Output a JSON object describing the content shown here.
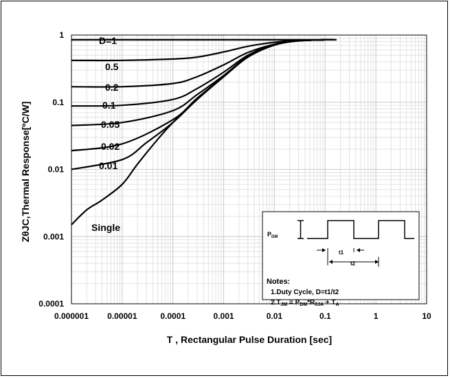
{
  "chart_data": {
    "type": "line",
    "title": "",
    "xlabel": "T , Rectangular Pulse Duration [sec]",
    "ylabel": "ZθJC,Thermal Response[ºC/W]",
    "x_scale": "log",
    "y_scale": "log",
    "xlim": [
      1e-06,
      10
    ],
    "ylim": [
      0.0001,
      1
    ],
    "grid": true,
    "x_ticks": [
      "0.000001",
      "0.00001",
      "0.0001",
      "0.001",
      "0.01",
      "0.1",
      "1",
      "10"
    ],
    "y_ticks": [
      "1",
      "0.1",
      "0.01",
      "0.001",
      "0.0001"
    ],
    "series": [
      {
        "name": "D=1",
        "points": [
          [
            1e-06,
            0.85
          ],
          [
            0.001,
            0.85
          ],
          [
            0.1,
            0.85
          ],
          [
            0.15,
            0.85
          ]
        ]
      },
      {
        "name": "0.5",
        "points": [
          [
            1e-06,
            0.42
          ],
          [
            1e-05,
            0.42
          ],
          [
            0.0001,
            0.44
          ],
          [
            0.0003,
            0.47
          ],
          [
            0.001,
            0.56
          ],
          [
            0.003,
            0.68
          ],
          [
            0.01,
            0.78
          ],
          [
            0.03,
            0.83
          ],
          [
            0.1,
            0.85
          ],
          [
            0.15,
            0.85
          ]
        ]
      },
      {
        "name": "0.2",
        "points": [
          [
            1e-06,
            0.17
          ],
          [
            1e-05,
            0.17
          ],
          [
            0.0001,
            0.19
          ],
          [
            0.0003,
            0.24
          ],
          [
            0.001,
            0.36
          ],
          [
            0.003,
            0.55
          ],
          [
            0.01,
            0.73
          ],
          [
            0.03,
            0.82
          ],
          [
            0.1,
            0.85
          ],
          [
            0.15,
            0.85
          ]
        ]
      },
      {
        "name": "0.1",
        "points": [
          [
            1e-06,
            0.088
          ],
          [
            1e-05,
            0.09
          ],
          [
            0.0001,
            0.11
          ],
          [
            0.0003,
            0.16
          ],
          [
            0.001,
            0.28
          ],
          [
            0.003,
            0.5
          ],
          [
            0.01,
            0.72
          ],
          [
            0.03,
            0.82
          ],
          [
            0.1,
            0.85
          ],
          [
            0.15,
            0.85
          ]
        ]
      },
      {
        "name": "0.05",
        "points": [
          [
            1e-06,
            0.045
          ],
          [
            1e-05,
            0.05
          ],
          [
            0.0001,
            0.075
          ],
          [
            0.0003,
            0.13
          ],
          [
            0.001,
            0.25
          ],
          [
            0.003,
            0.48
          ],
          [
            0.01,
            0.71
          ],
          [
            0.03,
            0.82
          ],
          [
            0.1,
            0.85
          ],
          [
            0.15,
            0.85
          ]
        ]
      },
      {
        "name": "0.02",
        "points": [
          [
            1e-06,
            0.019
          ],
          [
            1e-05,
            0.024
          ],
          [
            0.0001,
            0.055
          ],
          [
            0.0003,
            0.115
          ],
          [
            0.001,
            0.24
          ],
          [
            0.003,
            0.47
          ],
          [
            0.01,
            0.71
          ],
          [
            0.03,
            0.82
          ],
          [
            0.1,
            0.85
          ],
          [
            0.15,
            0.85
          ]
        ]
      },
      {
        "name": "0.01",
        "points": [
          [
            1e-06,
            0.01
          ],
          [
            1e-05,
            0.014
          ],
          [
            3e-05,
            0.025
          ],
          [
            0.0001,
            0.05
          ],
          [
            0.0003,
            0.11
          ],
          [
            0.001,
            0.24
          ],
          [
            0.003,
            0.47
          ],
          [
            0.01,
            0.71
          ],
          [
            0.03,
            0.82
          ],
          [
            0.1,
            0.85
          ],
          [
            0.15,
            0.85
          ]
        ]
      },
      {
        "name": "Single",
        "points": [
          [
            1e-06,
            0.0015
          ],
          [
            2e-06,
            0.0025
          ],
          [
            4e-06,
            0.0035
          ],
          [
            1e-05,
            0.006
          ],
          [
            2e-05,
            0.012
          ],
          [
            5e-05,
            0.028
          ],
          [
            0.0001,
            0.05
          ],
          [
            0.0003,
            0.11
          ],
          [
            0.001,
            0.24
          ],
          [
            0.003,
            0.47
          ],
          [
            0.01,
            0.71
          ],
          [
            0.03,
            0.82
          ],
          [
            0.1,
            0.85
          ],
          [
            0.15,
            0.85
          ]
        ]
      }
    ],
    "inset": {
      "pulse_label": "P",
      "pulse_label_sub": "DM",
      "t1_label": "t1",
      "t2_label": "t2",
      "notes_title": "Notes:",
      "note1": "1.Duty  Cycle, D=t1/t2",
      "note2_a": "2.T",
      "note2_a_sub": "JM",
      "note2_b": " = P",
      "note2_b_sub": "DM",
      "note2_c": "*R",
      "note2_c_sub": "θJA",
      "note2_d": " + T",
      "note2_d_sub": "A"
    },
    "colors": {
      "line": "#000000",
      "major_grid": "#c8c8c8",
      "minor_grid": "#e2e2e2",
      "inset_bg": "#ffffff"
    }
  }
}
